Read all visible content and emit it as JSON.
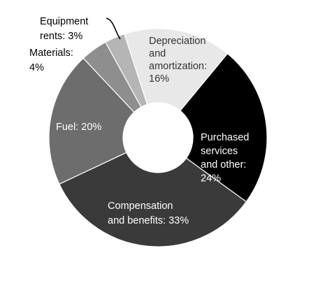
{
  "chart_data": {
    "type": "pie",
    "title": "",
    "slices": [
      {
        "label": "Depreciation and amortization",
        "value": 16,
        "label_lines": [
          "Depreciation",
          "and",
          "amortization:",
          "16%"
        ],
        "color": "#e8e8e8",
        "text_color": "#333333"
      },
      {
        "label": "Purchased services and other",
        "value": 24,
        "label_lines": [
          "Purchased",
          "services",
          "and other:",
          "24%"
        ],
        "color": "#000000",
        "text_color": "#ffffff"
      },
      {
        "label": "Compensation and benefits",
        "value": 33,
        "label_lines": [
          "Compensation",
          "and benefits: 33%"
        ],
        "color": "#3a3a3a",
        "text_color": "#ffffff"
      },
      {
        "label": "Fuel",
        "value": 20,
        "label_lines": [
          "Fuel: 20%"
        ],
        "color": "#6d6d6d",
        "text_color": "#ffffff"
      },
      {
        "label": "Materials",
        "value": 4,
        "label_lines": [
          "Materials:",
          "4%"
        ],
        "color": "#8e8e8e",
        "text_color": "#000000"
      },
      {
        "label": "Equipment rents",
        "value": 3,
        "label_lines": [
          "Equipment",
          "rents: 3%"
        ],
        "color": "#b5b5b5",
        "text_color": "#000000"
      }
    ],
    "legend": "none",
    "donut": true
  }
}
